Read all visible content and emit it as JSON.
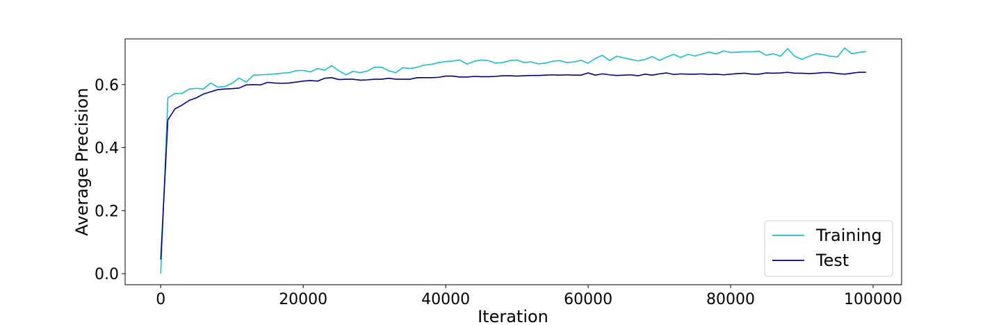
{
  "chart_data": {
    "type": "line",
    "title": "",
    "xlabel": "Iteration",
    "ylabel": "Average Precision",
    "xlim": [
      -5000,
      104000
    ],
    "ylim": [
      -0.035,
      0.745
    ],
    "xticks": [
      0,
      20000,
      40000,
      60000,
      80000,
      100000
    ],
    "xtick_labels": [
      "0",
      "20000",
      "40000",
      "60000",
      "80000",
      "100000"
    ],
    "yticks": [
      0.0,
      0.2,
      0.4,
      0.6
    ],
    "ytick_labels": [
      "0.0",
      "0.2",
      "0.4",
      "0.6"
    ],
    "grid": false,
    "legend_position": "lower-right",
    "x": [
      0,
      1000,
      2000,
      3000,
      4000,
      5000,
      6000,
      7000,
      8000,
      9000,
      10000,
      11000,
      12000,
      13000,
      14000,
      15000,
      16000,
      17000,
      18000,
      19000,
      20000,
      21000,
      22000,
      23000,
      24000,
      25000,
      26000,
      27000,
      28000,
      29000,
      30000,
      31000,
      32000,
      33000,
      34000,
      35000,
      36000,
      37000,
      38000,
      39000,
      40000,
      41000,
      42000,
      43000,
      44000,
      45000,
      46000,
      47000,
      48000,
      49000,
      50000,
      51000,
      52000,
      53000,
      54000,
      55000,
      56000,
      57000,
      58000,
      59000,
      60000,
      61000,
      62000,
      63000,
      64000,
      65000,
      66000,
      67000,
      68000,
      69000,
      70000,
      71000,
      72000,
      73000,
      74000,
      75000,
      76000,
      77000,
      78000,
      79000,
      80000,
      81000,
      82000,
      83000,
      84000,
      85000,
      86000,
      87000,
      88000,
      89000,
      90000,
      91000,
      92000,
      93000,
      94000,
      95000,
      96000,
      97000,
      98000,
      99000
    ],
    "series": [
      {
        "name": "Training",
        "color": "#17becf",
        "values": [
          0.0,
          0.558,
          0.572,
          0.572,
          0.586,
          0.588,
          0.586,
          0.605,
          0.592,
          0.594,
          0.604,
          0.621,
          0.608,
          0.63,
          0.631,
          0.632,
          0.634,
          0.636,
          0.638,
          0.644,
          0.645,
          0.64,
          0.651,
          0.646,
          0.66,
          0.644,
          0.631,
          0.642,
          0.638,
          0.643,
          0.655,
          0.655,
          0.644,
          0.638,
          0.654,
          0.651,
          0.655,
          0.662,
          0.664,
          0.67,
          0.673,
          0.675,
          0.678,
          0.665,
          0.674,
          0.678,
          0.676,
          0.668,
          0.67,
          0.676,
          0.678,
          0.67,
          0.672,
          0.666,
          0.668,
          0.674,
          0.676,
          0.67,
          0.672,
          0.677,
          0.668,
          0.683,
          0.693,
          0.676,
          0.69,
          0.685,
          0.68,
          0.675,
          0.68,
          0.689,
          0.677,
          0.687,
          0.696,
          0.686,
          0.696,
          0.691,
          0.697,
          0.703,
          0.697,
          0.707,
          0.702,
          0.703,
          0.704,
          0.704,
          0.706,
          0.693,
          0.698,
          0.69,
          0.714,
          0.69,
          0.68,
          0.69,
          0.698,
          0.695,
          0.69,
          0.688,
          0.716,
          0.698,
          0.702,
          0.705
        ]
      },
      {
        "name": "Test",
        "color": "#000080",
        "values": [
          0.045,
          0.488,
          0.523,
          0.535,
          0.55,
          0.558,
          0.57,
          0.577,
          0.584,
          0.586,
          0.587,
          0.589,
          0.599,
          0.6,
          0.599,
          0.607,
          0.605,
          0.604,
          0.605,
          0.608,
          0.611,
          0.613,
          0.611,
          0.62,
          0.622,
          0.616,
          0.617,
          0.617,
          0.614,
          0.615,
          0.617,
          0.617,
          0.62,
          0.617,
          0.617,
          0.617,
          0.622,
          0.622,
          0.622,
          0.623,
          0.627,
          0.627,
          0.624,
          0.624,
          0.626,
          0.625,
          0.625,
          0.626,
          0.628,
          0.628,
          0.627,
          0.628,
          0.629,
          0.629,
          0.63,
          0.631,
          0.63,
          0.631,
          0.63,
          0.63,
          0.637,
          0.63,
          0.634,
          0.631,
          0.629,
          0.63,
          0.631,
          0.628,
          0.633,
          0.63,
          0.634,
          0.637,
          0.632,
          0.634,
          0.633,
          0.633,
          0.634,
          0.632,
          0.633,
          0.631,
          0.633,
          0.635,
          0.636,
          0.633,
          0.633,
          0.637,
          0.636,
          0.637,
          0.639,
          0.636,
          0.636,
          0.635,
          0.636,
          0.638,
          0.638,
          0.635,
          0.633,
          0.636,
          0.639,
          0.639
        ]
      }
    ]
  }
}
